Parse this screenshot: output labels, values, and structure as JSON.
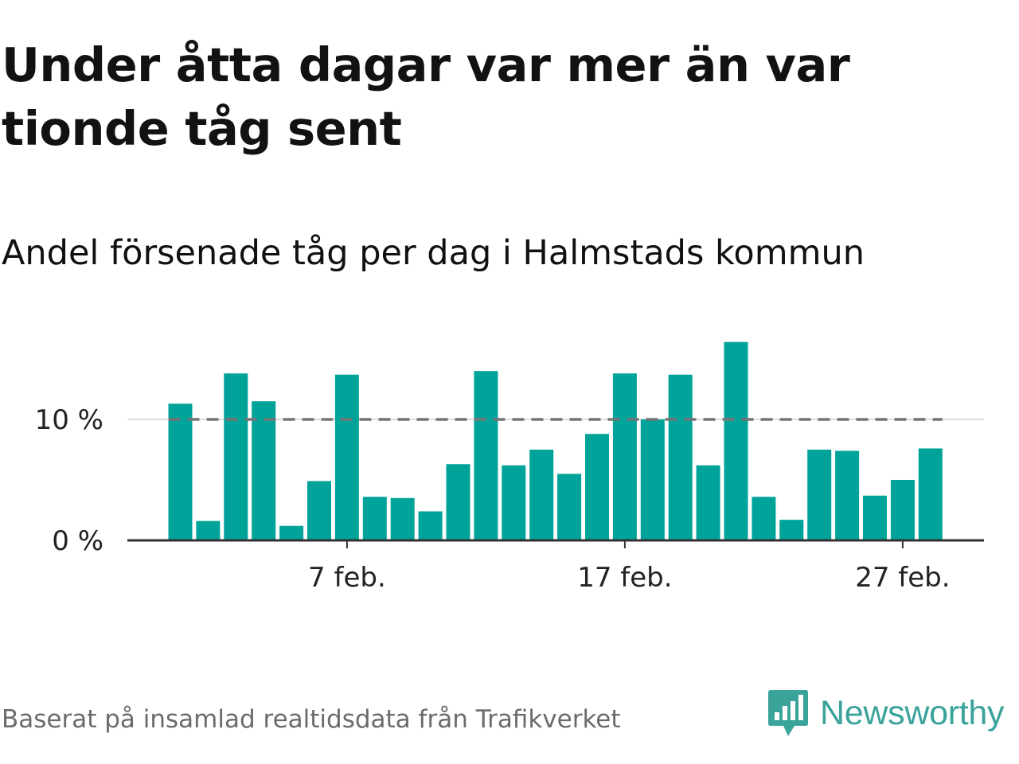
{
  "title": "Under åtta dagar var mer än var tionde tåg sent",
  "subtitle": "Andel försenade tåg per dag i Halmstads kommun",
  "source": "Baserat på insamlad realtidsdata från Trafikverket",
  "brand": {
    "name": "Newsworthy",
    "color": "#3aa39a",
    "icon": "newsworthy-bar-chart-icon"
  },
  "colors": {
    "bar": "#00a39a",
    "threshold": "#757575",
    "grid": "#dddddd",
    "axis": "#333333"
  },
  "chart_data": {
    "type": "bar",
    "title": "Andel försenade tåg per dag i Halmstads kommun",
    "xlabel": "",
    "ylabel": "",
    "x": [
      "2024-02-01",
      "2024-02-02",
      "2024-02-03",
      "2024-02-04",
      "2024-02-05",
      "2024-02-06",
      "2024-02-07",
      "2024-02-08",
      "2024-02-09",
      "2024-02-10",
      "2024-02-11",
      "2024-02-12",
      "2024-02-13",
      "2024-02-14",
      "2024-02-15",
      "2024-02-16",
      "2024-02-17",
      "2024-02-18",
      "2024-02-19",
      "2024-02-20",
      "2024-02-21",
      "2024-02-22",
      "2024-02-23",
      "2024-02-24",
      "2024-02-25",
      "2024-02-26",
      "2024-02-27",
      "2024-02-28"
    ],
    "values": [
      11.3,
      1.6,
      13.8,
      11.5,
      1.2,
      4.9,
      13.7,
      3.6,
      3.5,
      2.4,
      6.3,
      14.0,
      6.2,
      7.5,
      5.5,
      8.8,
      13.8,
      10.0,
      13.7,
      6.2,
      16.4,
      3.6,
      1.7,
      7.5,
      7.4,
      3.7,
      5.0,
      7.6
    ],
    "threshold": 10,
    "ylim": [
      0,
      16.4
    ],
    "yticks": [
      {
        "value": 0,
        "label": "0 %"
      },
      {
        "value": 10,
        "label": "10 %"
      }
    ],
    "xticks": [
      {
        "x": "2024-02-07",
        "label": "7 feb."
      },
      {
        "x": "2024-02-17",
        "label": "17 feb."
      },
      {
        "x": "2024-02-27",
        "label": "27 feb."
      }
    ],
    "grid": true,
    "legend": "none"
  }
}
